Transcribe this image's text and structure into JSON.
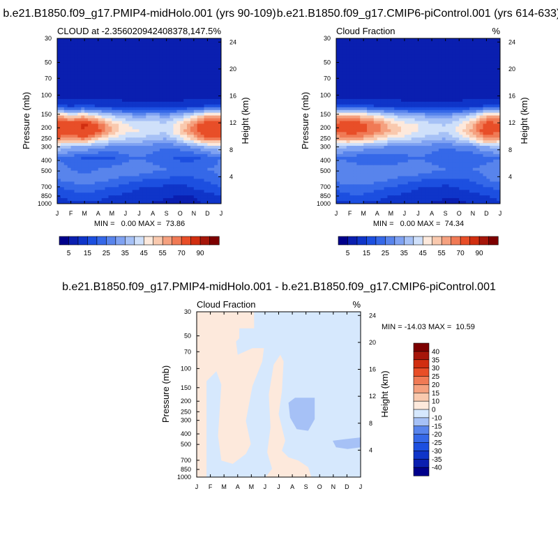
{
  "chart_data": [
    {
      "type": "heatmap",
      "case_title": "b.e21.B1850.f09_g17.PMIP4-midHolo.001 (yrs 90-109)",
      "subtitle_left": "CLOUD at -2.356020942408378,147.5",
      "subtitle_right": "%",
      "x_categories": [
        "J",
        "F",
        "M",
        "A",
        "M",
        "J",
        "J",
        "A",
        "S",
        "O",
        "N",
        "D",
        "J"
      ],
      "ylabel": "Pressure (mb)",
      "yticks": [
        "30",
        "50",
        "70",
        "100",
        "150",
        "200",
        "250",
        "300",
        "400",
        "500",
        "700",
        "850",
        "1000"
      ],
      "right_axis_label": "Height (km)",
      "right_ticks": [
        "24",
        "20",
        "16",
        "12",
        "8",
        "4"
      ],
      "stats_text": "MIN =   0.00 MAX =  73.86",
      "min": 0.0,
      "max": 73.86,
      "colorbar": {
        "levels": [
          0,
          5,
          10,
          15,
          20,
          25,
          30,
          35,
          40,
          45,
          50,
          55,
          60,
          70,
          80,
          90
        ],
        "labels": [
          "5",
          "15",
          "25",
          "35",
          "45",
          "55",
          "70",
          "90"
        ],
        "colors": [
          "#00008B",
          "#0A1FB0",
          "#0F35C9",
          "#1C4FE0",
          "#3568E8",
          "#5884EC",
          "#7FA2F2",
          "#A6C1F6",
          "#CFE0FA",
          "#FDE9DC",
          "#F9C9AE",
          "#F5A17F",
          "#F07A55",
          "#E84E28",
          "#D12E10",
          "#A6160A",
          "#7D0000"
        ]
      },
      "value_profile_by_month": [
        [
          1,
          1,
          1,
          1,
          3,
          10,
          50,
          68,
          66,
          58,
          34,
          20,
          22,
          20,
          14,
          10,
          8
        ],
        [
          1,
          1,
          1,
          1,
          3,
          9,
          45,
          64,
          64,
          54,
          30,
          18,
          20,
          22,
          16,
          12,
          9
        ],
        [
          1,
          1,
          1,
          1,
          3,
          10,
          48,
          72,
          70,
          58,
          30,
          14,
          18,
          24,
          18,
          14,
          10
        ],
        [
          1,
          1,
          1,
          1,
          3,
          9,
          40,
          60,
          62,
          46,
          26,
          14,
          20,
          22,
          16,
          12,
          9
        ],
        [
          1,
          1,
          1,
          1,
          3,
          8,
          34,
          48,
          50,
          40,
          24,
          14,
          22,
          20,
          14,
          10,
          8
        ],
        [
          1,
          1,
          1,
          1,
          3,
          7,
          30,
          40,
          42,
          36,
          24,
          18,
          24,
          18,
          12,
          9,
          7
        ],
        [
          1,
          1,
          1,
          1,
          3,
          6,
          28,
          38,
          40,
          34,
          24,
          20,
          24,
          16,
          10,
          8,
          6
        ],
        [
          1,
          1,
          1,
          1,
          3,
          6,
          30,
          38,
          38,
          32,
          22,
          18,
          22,
          14,
          10,
          7,
          5
        ],
        [
          1,
          1,
          1,
          1,
          3,
          6,
          28,
          36,
          36,
          30,
          20,
          16,
          20,
          14,
          8,
          6,
          4
        ],
        [
          1,
          1,
          1,
          1,
          3,
          7,
          32,
          44,
          46,
          38,
          22,
          14,
          18,
          12,
          8,
          4,
          3
        ],
        [
          1,
          1,
          1,
          1,
          3,
          8,
          40,
          56,
          58,
          48,
          26,
          14,
          18,
          14,
          10,
          5,
          4
        ],
        [
          1,
          1,
          1,
          1,
          3,
          10,
          50,
          66,
          70,
          60,
          32,
          16,
          20,
          16,
          12,
          8,
          6
        ],
        [
          1,
          1,
          1,
          1,
          3,
          10,
          50,
          68,
          66,
          58,
          34,
          20,
          22,
          20,
          14,
          10,
          8
        ]
      ]
    },
    {
      "type": "heatmap",
      "case_title": "b.e21.B1850.f09_g17.CMIP6-piControl.001 (yrs 614-633)",
      "subtitle_left": "Cloud Fraction",
      "subtitle_right": "%",
      "x_categories": [
        "J",
        "F",
        "M",
        "A",
        "M",
        "J",
        "J",
        "A",
        "S",
        "O",
        "N",
        "D",
        "J"
      ],
      "ylabel": "Pressure (mb)",
      "yticks": [
        "30",
        "50",
        "70",
        "100",
        "150",
        "200",
        "250",
        "300",
        "400",
        "500",
        "700",
        "850",
        "1000"
      ],
      "right_axis_label": "Height (km)",
      "right_ticks": [
        "24",
        "20",
        "16",
        "12",
        "8",
        "4"
      ],
      "stats_text": "MIN =   0.00 MAX =  74.34",
      "min": 0.0,
      "max": 74.34,
      "colorbar": {
        "levels": [
          0,
          5,
          10,
          15,
          20,
          25,
          30,
          35,
          40,
          45,
          50,
          55,
          60,
          70,
          80,
          90
        ],
        "labels": [
          "5",
          "15",
          "25",
          "35",
          "45",
          "55",
          "70",
          "90"
        ],
        "colors": [
          "#00008B",
          "#0A1FB0",
          "#0F35C9",
          "#1C4FE0",
          "#3568E8",
          "#5884EC",
          "#7FA2F2",
          "#A6C1F6",
          "#CFE0FA",
          "#FDE9DC",
          "#F9C9AE",
          "#F5A17F",
          "#F07A55",
          "#E84E28",
          "#D12E10",
          "#A6160A",
          "#7D0000"
        ]
      },
      "value_profile_by_month": [
        [
          1,
          1,
          1,
          1,
          3,
          10,
          50,
          62,
          60,
          52,
          32,
          20,
          24,
          22,
          16,
          12,
          9
        ],
        [
          1,
          1,
          1,
          1,
          3,
          10,
          50,
          66,
          64,
          54,
          30,
          18,
          24,
          24,
          18,
          14,
          10
        ],
        [
          1,
          1,
          1,
          1,
          3,
          10,
          48,
          62,
          62,
          52,
          28,
          16,
          22,
          24,
          18,
          14,
          10
        ],
        [
          1,
          1,
          1,
          1,
          3,
          9,
          42,
          56,
          56,
          46,
          26,
          16,
          22,
          22,
          16,
          12,
          9
        ],
        [
          1,
          1,
          1,
          1,
          3,
          8,
          36,
          48,
          50,
          40,
          24,
          16,
          22,
          20,
          14,
          10,
          8
        ],
        [
          1,
          1,
          1,
          1,
          3,
          7,
          32,
          42,
          44,
          38,
          24,
          18,
          24,
          18,
          12,
          9,
          7
        ],
        [
          1,
          1,
          1,
          1,
          3,
          6,
          30,
          40,
          40,
          34,
          24,
          20,
          24,
          16,
          10,
          8,
          6
        ],
        [
          1,
          1,
          1,
          1,
          3,
          6,
          28,
          36,
          38,
          32,
          22,
          18,
          22,
          14,
          10,
          7,
          5
        ],
        [
          1,
          1,
          1,
          1,
          3,
          6,
          28,
          34,
          36,
          30,
          20,
          16,
          20,
          14,
          8,
          6,
          4
        ],
        [
          1,
          1,
          1,
          1,
          3,
          7,
          30,
          40,
          42,
          36,
          22,
          16,
          20,
          14,
          10,
          6,
          4
        ],
        [
          1,
          1,
          1,
          1,
          3,
          8,
          36,
          50,
          52,
          44,
          24,
          16,
          20,
          16,
          12,
          8,
          6
        ],
        [
          1,
          1,
          1,
          1,
          3,
          10,
          50,
          64,
          66,
          56,
          30,
          18,
          22,
          20,
          14,
          10,
          8
        ],
        [
          1,
          1,
          1,
          1,
          3,
          10,
          50,
          62,
          60,
          52,
          32,
          20,
          24,
          22,
          16,
          12,
          9
        ]
      ]
    },
    {
      "type": "heatmap",
      "case_title": "b.e21.B1850.f09_g17.PMIP4-midHolo.001 - b.e21.B1850.f09_g17.CMIP6-piControl.001",
      "subtitle_left": "Cloud Fraction",
      "subtitle_right": "%",
      "x_categories": [
        "J",
        "F",
        "M",
        "A",
        "M",
        "J",
        "J",
        "A",
        "S",
        "O",
        "N",
        "D",
        "J"
      ],
      "ylabel": "Pressure (mb)",
      "yticks": [
        "30",
        "50",
        "70",
        "100",
        "150",
        "200",
        "250",
        "300",
        "400",
        "500",
        "700",
        "850",
        "1000"
      ],
      "right_axis_label": "Height (km)",
      "right_ticks": [
        "24",
        "20",
        "16",
        "12",
        "8",
        "4"
      ],
      "stats_text": "MIN = -14.03 MAX =  10.59",
      "min": -14.03,
      "max": 10.59,
      "colorbar": {
        "levels": [
          -40,
          -35,
          -30,
          -25,
          -20,
          -15,
          -10,
          0,
          10,
          15,
          20,
          25,
          30,
          35,
          40
        ],
        "labels": [
          "40",
          "35",
          "30",
          "25",
          "20",
          "15",
          "10",
          "0",
          "-10",
          "-15",
          "-20",
          "-25",
          "-30",
          "-35",
          "-40"
        ],
        "colors": [
          "#00008B",
          "#0A1FB0",
          "#0F35C9",
          "#1C4FE0",
          "#3568E8",
          "#5884EC",
          "#A6C1F6",
          "#D6E8FD",
          "#FDE9DC",
          "#F9C9AE",
          "#F5A17F",
          "#F07A55",
          "#E84E28",
          "#D12E10",
          "#A6160A",
          "#7D0000"
        ]
      },
      "dominant_value": 2,
      "negative_region_value": -4,
      "stronger_negative_patches_value": -11
    }
  ]
}
